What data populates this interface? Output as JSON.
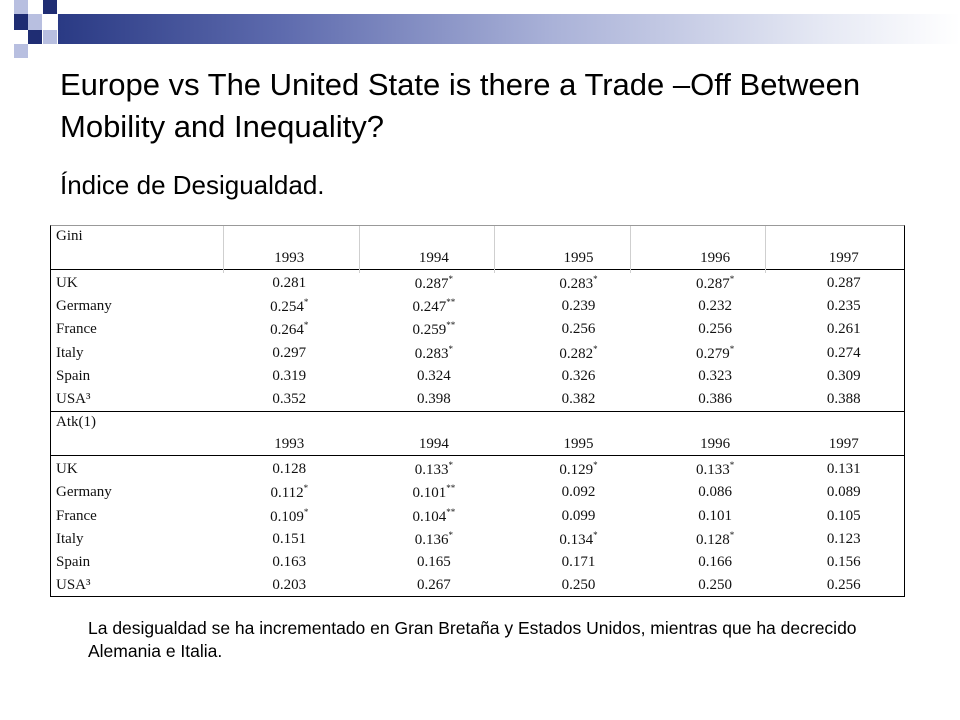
{
  "title": "Europe vs The United State is there a Trade –Off Between Mobility and Inequality?",
  "subtitle": "Índice de Desigualdad.",
  "table": {
    "sections": [
      {
        "name": "Gini",
        "years": [
          "1993",
          "1994",
          "1995",
          "1996",
          "1997"
        ],
        "rows": [
          {
            "country": "UK",
            "values": [
              "0.281",
              "0.287*",
              "0.283*",
              "0.287*",
              "0.287"
            ]
          },
          {
            "country": "Germany",
            "values": [
              "0.254*",
              "0.247**",
              "0.239",
              "0.232",
              "0.235"
            ]
          },
          {
            "country": "France",
            "values": [
              "0.264*",
              "0.259**",
              "0.256",
              "0.256",
              "0.261"
            ]
          },
          {
            "country": "Italy",
            "values": [
              "0.297",
              "0.283*",
              "0.282*",
              "0.279*",
              "0.274"
            ]
          },
          {
            "country": "Spain",
            "values": [
              "0.319",
              "0.324",
              "0.326",
              "0.323",
              "0.309"
            ]
          },
          {
            "country": "USA³",
            "values": [
              "0.352",
              "0.398",
              "0.382",
              "0.386",
              "0.388"
            ]
          }
        ]
      },
      {
        "name": "Atk(1)",
        "years": [
          "1993",
          "1994",
          "1995",
          "1996",
          "1997"
        ],
        "rows": [
          {
            "country": "UK",
            "values": [
              "0.128",
              "0.133*",
              "0.129*",
              "0.133*",
              "0.131"
            ]
          },
          {
            "country": "Germany",
            "values": [
              "0.112*",
              "0.101**",
              "0.092",
              "0.086",
              "0.089"
            ]
          },
          {
            "country": "France",
            "values": [
              "0.109*",
              "0.104**",
              "0.099",
              "0.101",
              "0.105"
            ]
          },
          {
            "country": "Italy",
            "values": [
              "0.151",
              "0.136*",
              "0.134*",
              "0.128*",
              "0.123"
            ]
          },
          {
            "country": "Spain",
            "values": [
              "0.163",
              "0.165",
              "0.171",
              "0.166",
              "0.156"
            ]
          },
          {
            "country": "USA³",
            "values": [
              "0.203",
              "0.267",
              "0.250",
              "0.250",
              "0.256"
            ]
          }
        ]
      }
    ]
  },
  "footnote": "La desigualdad se ha incrementado en Gran Bretaña y Estados Unidos, mientras que ha decrecido Alemania e Italia.",
  "colors": {
    "accent_dark": "#1f2d73",
    "accent_light": "#b8bfe0"
  }
}
